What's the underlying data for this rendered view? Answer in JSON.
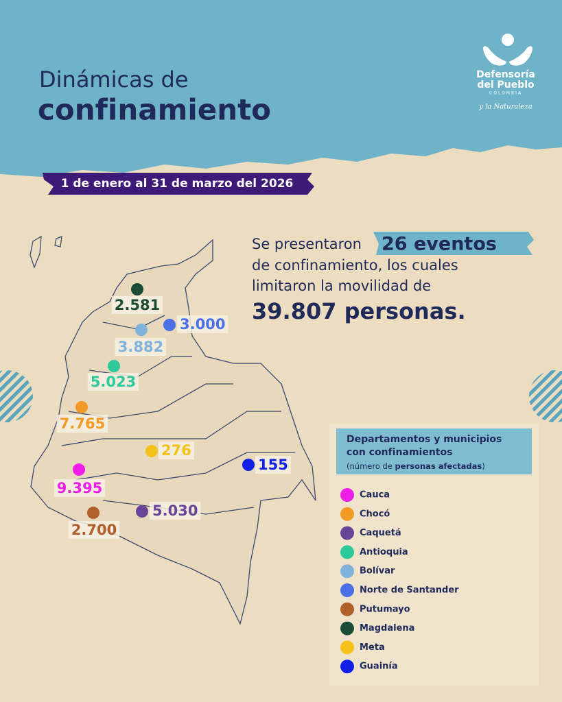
{
  "header": {
    "title_line1": "Dinámicas de",
    "title_line2": "confinamiento",
    "date_range": "1 de enero al 31 de marzo del 2026"
  },
  "logo": {
    "name_line1": "Defensoría",
    "name_line2": "del Pueblo",
    "country": "COLOMBIA",
    "tagline": "y la Naturaleza"
  },
  "summary": {
    "line1": "Se presentaron",
    "highlight": "26 eventos",
    "line2": "de confinamiento, los cuales",
    "line3": "limitaron la movilidad de",
    "total": "39.807 personas",
    "end": "."
  },
  "legend": {
    "title_line1": "Departamentos y municipios",
    "title_line2": "con confinamientos",
    "note_open": "(número de ",
    "note_bold": "personas afectadas",
    "note_close": ")",
    "items": [
      {
        "name": "Cauca",
        "color": "#ee1ee8"
      },
      {
        "name": "Chocó",
        "color": "#f29a26"
      },
      {
        "name": "Caquetá",
        "color": "#6a4597"
      },
      {
        "name": "Antioquia",
        "color": "#2ec99a"
      },
      {
        "name": "Bolívar",
        "color": "#7fb3dc"
      },
      {
        "name": "Norte de Santander",
        "color": "#4a6fe6"
      },
      {
        "name": "Putumayo",
        "color": "#b0602a"
      },
      {
        "name": "Magdalena",
        "color": "#1a4d36"
      },
      {
        "name": "Meta",
        "color": "#f4c21a"
      },
      {
        "name": "Guainía",
        "color": "#1020e6"
      }
    ]
  },
  "map": {
    "markers": [
      {
        "label": "9.395",
        "color": "#ee1ee8"
      },
      {
        "label": "7.765",
        "color": "#f29a26"
      },
      {
        "label": "5.030",
        "color": "#6a4597"
      },
      {
        "label": "5.023",
        "color": "#2ec99a"
      },
      {
        "label": "3.882",
        "color": "#7fb3dc"
      },
      {
        "label": "3.000",
        "color": "#4a6fe6"
      },
      {
        "label": "2.700",
        "color": "#b0602a"
      },
      {
        "label": "2.581",
        "color": "#1a4d36"
      },
      {
        "label": "276",
        "color": "#f4c21a"
      },
      {
        "label": "155",
        "color": "#1020e6"
      }
    ]
  }
}
